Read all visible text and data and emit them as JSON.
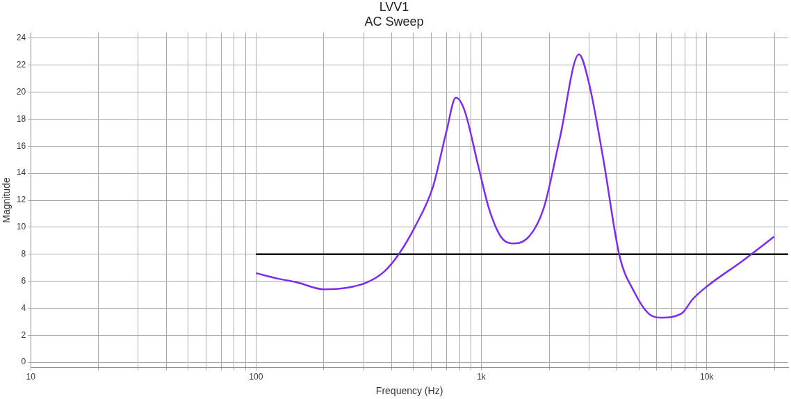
{
  "chart_data": {
    "type": "line",
    "title": "LVV1",
    "subtitle": "AC Sweep",
    "xlabel": "Frequency (Hz)",
    "ylabel": "Magnitude",
    "log": "x",
    "grid": true,
    "legend": false,
    "marker": "none",
    "line_style": "solid",
    "xlim": [
      10,
      23000
    ],
    "ylim": [
      -0.4,
      24.4
    ],
    "xticks": [
      10,
      {
        "value": 20,
        "label": null
      },
      {
        "value": 30,
        "label": null
      },
      {
        "value": 40,
        "label": null
      },
      {
        "value": 50,
        "label": null
      },
      {
        "value": 60,
        "label": null
      },
      {
        "value": 70,
        "label": null
      },
      {
        "value": 80,
        "label": null
      },
      {
        "value": 90,
        "label": null
      },
      100,
      {
        "value": 200,
        "label": null
      },
      {
        "value": 300,
        "label": null
      },
      {
        "value": 400,
        "label": null
      },
      {
        "value": 500,
        "label": null
      },
      {
        "value": 600,
        "label": null
      },
      {
        "value": 700,
        "label": null
      },
      {
        "value": 800,
        "label": null
      },
      {
        "value": 900,
        "label": null
      },
      {
        "value": 1000,
        "label": "1k"
      },
      {
        "value": 2000,
        "label": null
      },
      {
        "value": 3000,
        "label": null
      },
      {
        "value": 4000,
        "label": null
      },
      {
        "value": 5000,
        "label": null
      },
      {
        "value": 6000,
        "label": null
      },
      {
        "value": 7000,
        "label": null
      },
      {
        "value": 8000,
        "label": null
      },
      {
        "value": 9000,
        "label": null
      },
      {
        "value": 10000,
        "label": "10k"
      },
      {
        "value": 20000,
        "label": null
      }
    ],
    "yticks": [
      0,
      2,
      4,
      6,
      8,
      10,
      12,
      14,
      16,
      18,
      20,
      22,
      24
    ],
    "series": [
      {
        "color": "#7b2cf0",
        "x": [
          100,
          124,
          153,
          200,
          250,
          310,
          370,
          430,
          510,
          610,
          700,
          770,
          840,
          970,
          1080,
          1220,
          1370,
          1580,
          1890,
          2230,
          2710,
          3000,
          3480,
          4100,
          4770,
          5520,
          6230,
          7720,
          8700,
          10000,
          14400,
          19900
        ],
        "values": [
          6.6,
          6.2,
          5.9,
          5.4,
          5.5,
          5.9,
          6.7,
          8.0,
          10.1,
          13.0,
          17.1,
          19.6,
          18.7,
          14.5,
          11.4,
          9.3,
          8.8,
          9.1,
          11.4,
          16.6,
          22.8,
          20.7,
          15.0,
          7.9,
          5.2,
          3.6,
          3.3,
          3.6,
          4.7,
          5.6,
          7.5,
          9.3
        ]
      },
      {
        "color": "#000000",
        "x": [
          100,
          23000
        ],
        "values": [
          8,
          8
        ]
      }
    ]
  }
}
